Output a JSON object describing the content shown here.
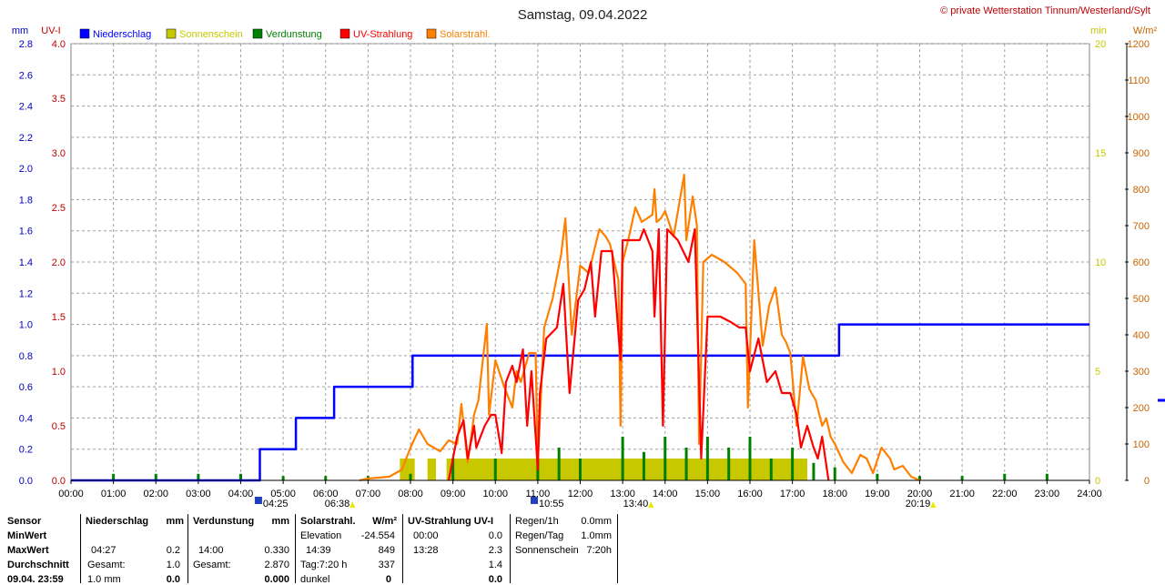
{
  "header": {
    "title": "Samstag, 09.04.2022",
    "copyright": "© private Wetterstation Tinnum/Westerland/Sylt"
  },
  "units": {
    "mm": "mm",
    "uvi": "UV-I",
    "min": "min",
    "wm2": "W/m²"
  },
  "legend": [
    {
      "label": "Niederschlag",
      "color": "#0000ff"
    },
    {
      "label": "Sonnenschein",
      "color": "#c8c800"
    },
    {
      "label": "Verdunstung",
      "color": "#008000"
    },
    {
      "label": "UV-Strahlung",
      "color": "#ff0000"
    },
    {
      "label": "Solarstrahl.",
      "color": "#ff8000"
    }
  ],
  "chart_data": {
    "type": "line",
    "title": "Samstag, 09.04.2022",
    "x_ticks": [
      "00:00",
      "01:00",
      "02:00",
      "03:00",
      "04:00",
      "05:00",
      "06:00",
      "07:00",
      "08:00",
      "09:00",
      "10:00",
      "11:00",
      "12:00",
      "13:00",
      "14:00",
      "15:00",
      "16:00",
      "17:00",
      "18:00",
      "19:00",
      "20:00",
      "21:00",
      "22:00",
      "23:00",
      "24:00"
    ],
    "axes": {
      "mm": {
        "range": [
          0,
          2.8
        ],
        "ticks": [
          "0.0",
          "0.2",
          "0.4",
          "0.6",
          "0.8",
          "1.0",
          "1.2",
          "1.4",
          "1.6",
          "1.8",
          "2.0",
          "2.2",
          "2.4",
          "2.6",
          "2.8"
        ],
        "color": "#0000c0"
      },
      "uvi": {
        "range": [
          0,
          4.0
        ],
        "ticks": [
          "0.0",
          "0.5",
          "1.0",
          "1.5",
          "2.0",
          "2.5",
          "3.0",
          "3.5",
          "4.0"
        ],
        "color": "#c00000"
      },
      "min": {
        "range": [
          0,
          20
        ],
        "ticks": [
          "0",
          "5",
          "10",
          "15",
          "20"
        ],
        "color": "#c8c800"
      },
      "wm2": {
        "range": [
          0,
          1200
        ],
        "ticks": [
          "0",
          "100",
          "200",
          "300",
          "400",
          "500",
          "600",
          "700",
          "800",
          "900",
          "1000",
          "1100",
          "1200"
        ],
        "color": "#c86400"
      }
    },
    "grid": true,
    "events": [
      {
        "label": "13:40",
        "time": "13:40",
        "row": 1
      },
      {
        "label": "04:25",
        "time": "04:25",
        "row": 0
      },
      {
        "label": "06:38",
        "time": "06:38",
        "row": 1
      },
      {
        "label": "10:55",
        "time": "10:55",
        "row": 0
      },
      {
        "label": "20:19",
        "time": "20:19",
        "row": 1
      }
    ],
    "series": [
      {
        "name": "Niederschlag",
        "color": "#0000ff",
        "axis": "mm",
        "points": [
          [
            0,
            0
          ],
          [
            4.45,
            0
          ],
          [
            4.45,
            0.2
          ],
          [
            5.3,
            0.2
          ],
          [
            5.3,
            0.4
          ],
          [
            6.2,
            0.4
          ],
          [
            6.2,
            0.6
          ],
          [
            8.05,
            0.6
          ],
          [
            8.05,
            0.8
          ],
          [
            18.1,
            0.8
          ],
          [
            18.1,
            1.0
          ],
          [
            24,
            1.0
          ]
        ]
      },
      {
        "name": "Solarstrahl.",
        "color": "#ff8000",
        "axis": "wm2",
        "points": [
          [
            6.8,
            0
          ],
          [
            7,
            5
          ],
          [
            7.5,
            10
          ],
          [
            7.8,
            30
          ],
          [
            8,
            90
          ],
          [
            8.2,
            140
          ],
          [
            8.4,
            100
          ],
          [
            8.7,
            80
          ],
          [
            8.9,
            110
          ],
          [
            9.1,
            100
          ],
          [
            9.2,
            210
          ],
          [
            9.35,
            50
          ],
          [
            9.5,
            180
          ],
          [
            9.6,
            220
          ],
          [
            9.8,
            430
          ],
          [
            9.85,
            180
          ],
          [
            10,
            330
          ],
          [
            10.2,
            260
          ],
          [
            10.4,
            200
          ],
          [
            10.5,
            300
          ],
          [
            10.6,
            270
          ],
          [
            10.8,
            350
          ],
          [
            10.95,
            350
          ],
          [
            11,
            50
          ],
          [
            11.15,
            420
          ],
          [
            11.35,
            500
          ],
          [
            11.55,
            620
          ],
          [
            11.65,
            720
          ],
          [
            11.8,
            400
          ],
          [
            12,
            590
          ],
          [
            12.2,
            570
          ],
          [
            12.45,
            690
          ],
          [
            12.6,
            670
          ],
          [
            12.7,
            650
          ],
          [
            12.9,
            550
          ],
          [
            12.95,
            150
          ],
          [
            13.0,
            600
          ],
          [
            13.15,
            670
          ],
          [
            13.3,
            750
          ],
          [
            13.45,
            710
          ],
          [
            13.7,
            730
          ],
          [
            13.75,
            800
          ],
          [
            13.8,
            710
          ],
          [
            13.9,
            720
          ],
          [
            14.0,
            740
          ],
          [
            14.2,
            670
          ],
          [
            14.45,
            840
          ],
          [
            14.5,
            660
          ],
          [
            14.65,
            780
          ],
          [
            14.75,
            700
          ],
          [
            14.8,
            100
          ],
          [
            14.9,
            600
          ],
          [
            15.1,
            620
          ],
          [
            15.4,
            600
          ],
          [
            15.7,
            570
          ],
          [
            15.9,
            540
          ],
          [
            15.95,
            200
          ],
          [
            16.1,
            660
          ],
          [
            16.3,
            370
          ],
          [
            16.45,
            480
          ],
          [
            16.6,
            530
          ],
          [
            16.75,
            400
          ],
          [
            16.85,
            380
          ],
          [
            16.95,
            350
          ],
          [
            17.1,
            150
          ],
          [
            17.25,
            340
          ],
          [
            17.4,
            250
          ],
          [
            17.55,
            220
          ],
          [
            17.7,
            150
          ],
          [
            17.8,
            170
          ],
          [
            17.9,
            120
          ],
          [
            18.0,
            100
          ],
          [
            18.2,
            50
          ],
          [
            18.4,
            20
          ],
          [
            18.6,
            70
          ],
          [
            18.75,
            60
          ],
          [
            18.9,
            20
          ],
          [
            19.1,
            90
          ],
          [
            19.3,
            60
          ],
          [
            19.4,
            30
          ],
          [
            19.6,
            40
          ],
          [
            19.8,
            10
          ],
          [
            20,
            0
          ]
        ]
      },
      {
        "name": "UV-Strahlung",
        "color": "#ff0000",
        "axis": "uvi",
        "points": [
          [
            8.9,
            0
          ],
          [
            9.1,
            0.4
          ],
          [
            9.25,
            0.55
          ],
          [
            9.35,
            0.2
          ],
          [
            9.5,
            0.5
          ],
          [
            9.55,
            0.3
          ],
          [
            9.75,
            0.5
          ],
          [
            9.9,
            0.6
          ],
          [
            10.0,
            0.6
          ],
          [
            10.15,
            0.25
          ],
          [
            10.25,
            0.9
          ],
          [
            10.4,
            1.05
          ],
          [
            10.5,
            0.9
          ],
          [
            10.65,
            1.2
          ],
          [
            10.75,
            0.5
          ],
          [
            10.85,
            1.0
          ],
          [
            11.0,
            0.1
          ],
          [
            11.05,
            0.8
          ],
          [
            11.2,
            1.3
          ],
          [
            11.45,
            1.4
          ],
          [
            11.6,
            1.8
          ],
          [
            11.75,
            0.8
          ],
          [
            11.95,
            1.65
          ],
          [
            12.1,
            1.75
          ],
          [
            12.25,
            2.0
          ],
          [
            12.35,
            1.5
          ],
          [
            12.5,
            2.1
          ],
          [
            12.75,
            2.1
          ],
          [
            12.95,
            1.1
          ],
          [
            13.0,
            2.2
          ],
          [
            13.4,
            2.2
          ],
          [
            13.5,
            2.3
          ],
          [
            13.6,
            2.2
          ],
          [
            13.7,
            2.1
          ],
          [
            13.75,
            1.5
          ],
          [
            13.85,
            2.3
          ],
          [
            13.95,
            0.5
          ],
          [
            14.05,
            2.3
          ],
          [
            14.3,
            2.2
          ],
          [
            14.55,
            2.0
          ],
          [
            14.7,
            2.3
          ],
          [
            14.85,
            0.2
          ],
          [
            15.0,
            1.5
          ],
          [
            15.15,
            1.5
          ],
          [
            15.3,
            1.5
          ],
          [
            15.55,
            1.45
          ],
          [
            15.75,
            1.4
          ],
          [
            15.9,
            1.4
          ],
          [
            16.0,
            1.0
          ],
          [
            16.2,
            1.3
          ],
          [
            16.4,
            0.9
          ],
          [
            16.6,
            1.0
          ],
          [
            16.75,
            0.8
          ],
          [
            16.95,
            0.8
          ],
          [
            17.1,
            0.6
          ],
          [
            17.2,
            0.3
          ],
          [
            17.35,
            0.5
          ],
          [
            17.5,
            0.3
          ],
          [
            17.6,
            0.2
          ],
          [
            17.7,
            0.4
          ],
          [
            17.85,
            0
          ]
        ]
      },
      {
        "name": "Sonnenschein",
        "color": "#c8c800",
        "axis": "min",
        "type": "bar",
        "bars": [
          [
            7.75,
            8.1,
            1.0
          ],
          [
            8.4,
            8.6,
            1.0
          ],
          [
            8.85,
            17.35,
            1.0
          ]
        ]
      },
      {
        "name": "Verdunstung",
        "color": "#008000",
        "axis": "min",
        "type": "spike",
        "spikes": [
          [
            1,
            0.3
          ],
          [
            2,
            0.3
          ],
          [
            3,
            0.3
          ],
          [
            4,
            0.3
          ],
          [
            5,
            0.2
          ],
          [
            6,
            0.2
          ],
          [
            7,
            0.2
          ],
          [
            8,
            0.3
          ],
          [
            9,
            1.0
          ],
          [
            10,
            1.0
          ],
          [
            11,
            1.0
          ],
          [
            11.5,
            1.5
          ],
          [
            12,
            1.0
          ],
          [
            13,
            2.0
          ],
          [
            13.5,
            1.3
          ],
          [
            14,
            2.0
          ],
          [
            14.5,
            1.5
          ],
          [
            15,
            2.0
          ],
          [
            15.5,
            1.5
          ],
          [
            16,
            2.0
          ],
          [
            16.5,
            1.0
          ],
          [
            17,
            1.5
          ],
          [
            17.5,
            0.8
          ],
          [
            18,
            0.6
          ],
          [
            19,
            0.3
          ],
          [
            20,
            0.2
          ],
          [
            21,
            0.2
          ],
          [
            22,
            0.3
          ],
          [
            23,
            0.3
          ]
        ]
      }
    ]
  },
  "table": {
    "rows": [
      "Sensor",
      "MinWert",
      "MaxWert",
      "Durchschnitt",
      "09.04. 23:59"
    ],
    "niederschlag": {
      "header": "Niederschlag",
      "unit": "mm",
      "max_time": "04:27",
      "max_val": "0.2",
      "sum_label": "Gesamt:",
      "sum_val": "1.0",
      "last_label": "1.0 mm",
      "last_val": "0.0"
    },
    "verdunstung": {
      "header": "Verdunstung",
      "unit": "mm",
      "max_time": "14:00",
      "max_val": "0.330",
      "sum_label": "Gesamt:",
      "sum_val": "2.870",
      "last_val": "0.000"
    },
    "solar": {
      "header": "Solarstrahl.",
      "unit": "W/m²",
      "min_label": "Elevation",
      "min_val": "-24.554",
      "max_time": "14:39",
      "max_val": "849",
      "avg_label": "Tag:7:20 h",
      "avg_val": "337",
      "last_label": "dunkel",
      "last_val": "0"
    },
    "uv": {
      "header": "UV-Strahlung UV-I",
      "min_time": "00:00",
      "min_val": "0.0",
      "max_time": "13:28",
      "max_val": "2.3",
      "avg_val": "1.4",
      "last_val": "0.0"
    },
    "rain": {
      "h_label": "Regen/1h",
      "h_val": "0.0mm",
      "day_label": "Regen/Tag",
      "day_val": "1.0mm",
      "sun_label": "Sonnenschein",
      "sun_val": "7:20h"
    }
  }
}
